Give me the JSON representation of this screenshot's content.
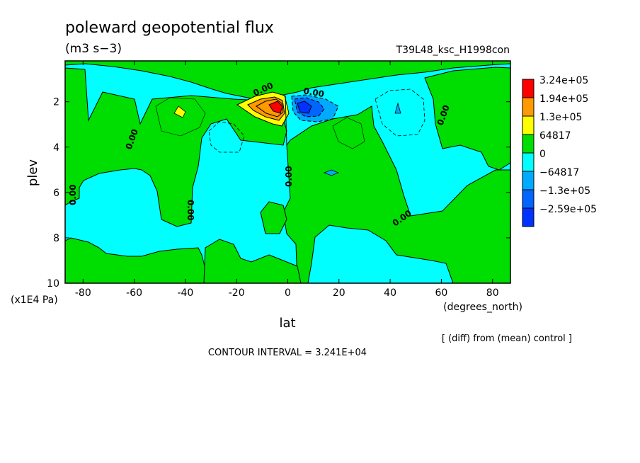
{
  "chart_data": {
    "type": "heatmap",
    "title": "poleward geopotential flux",
    "units": "(m3 s−3)",
    "run_label": "T39L48_ksc_H1998con",
    "xlabel": "lat",
    "x_units": "(degrees_north)",
    "ylabel": "plev",
    "y_units": "(x1E4 Pa)",
    "xlim": [
      -87,
      87
    ],
    "ylim": [
      10,
      0.2
    ],
    "x_ticks": [
      "-80",
      "-60",
      "-40",
      "-20",
      "0",
      "20",
      "40",
      "60",
      "80"
    ],
    "x_tick_values": [
      -80,
      -60,
      -40,
      -20,
      0,
      20,
      40,
      60,
      80
    ],
    "y_ticks": [
      "2",
      "4",
      "6",
      "8",
      "10"
    ],
    "y_tick_values": [
      2,
      4,
      6,
      8,
      10
    ],
    "legend": {
      "placement": "right",
      "labels": [
        "3.24e+05",
        "1.94e+05",
        "1.3e+05",
        "64817",
        "0",
        "−64817",
        "−1.3e+05",
        "−2.59e+05"
      ],
      "colors": [
        "#ff0000",
        "#ff9900",
        "#ffff00",
        "#00dd00",
        "#00ffff",
        "#00aaff",
        "#0066ff",
        "#0033ff"
      ]
    },
    "contour_labels": [
      "0.00",
      "0.00",
      "0.00",
      "0.00",
      "0.00",
      "0.00",
      "0.00"
    ],
    "contour_interval_text": "CONTOUR INTERVAL = 3.241E+04",
    "note": "[ (diff) from (mean) control ]",
    "features": [
      {
        "lat": -5,
        "plev": 2.2,
        "value": 324000
      },
      {
        "lat": 8,
        "plev": 2.1,
        "value": -259000
      },
      {
        "lat": -42,
        "plev": 2.3,
        "value": 64817
      },
      {
        "lat": 44,
        "plev": 2.2,
        "value": -64817
      }
    ]
  }
}
